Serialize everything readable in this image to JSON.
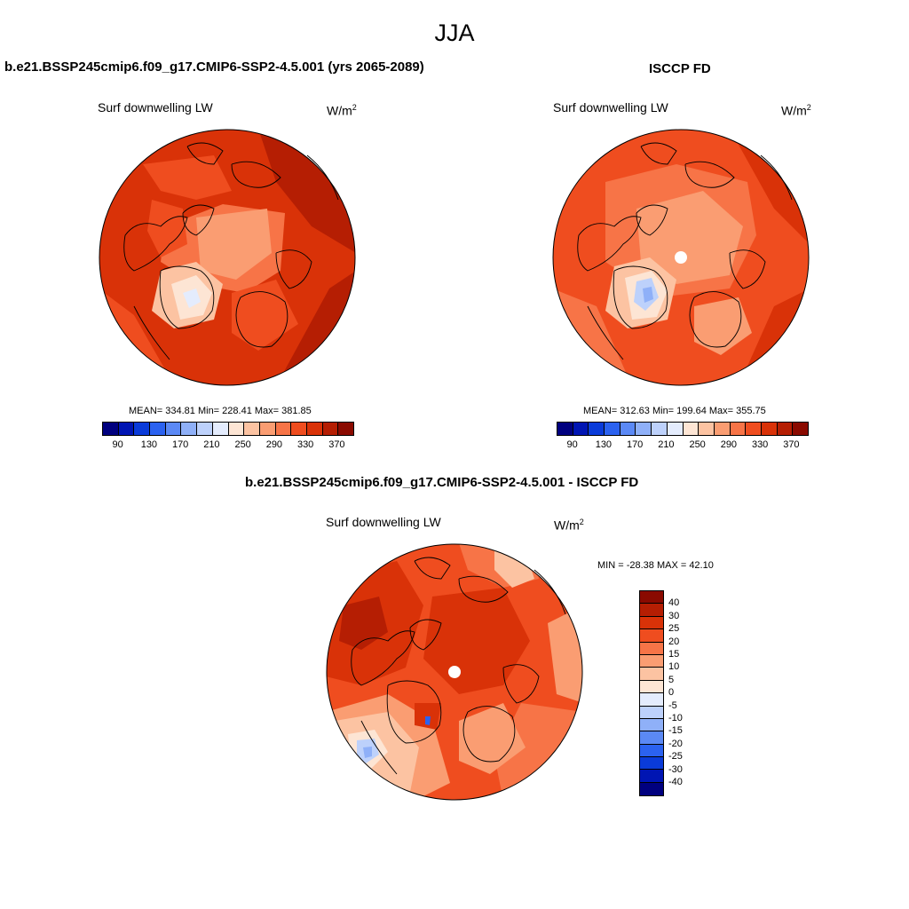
{
  "main_title": "JJA",
  "panels": [
    {
      "title": "b.e21.BSSP245cmip6.f09_g17.CMIP6-SSP2-4.5.001 (yrs 2065-2089)",
      "variable": "Surf downwelling LW",
      "units": "W/m",
      "units_sup": "2",
      "stats": "MEAN= 334.81  Min= 228.41  Max= 381.85",
      "colorbar_ticks": [
        "90",
        "130",
        "170",
        "210",
        "250",
        "290",
        "330",
        "370"
      ]
    },
    {
      "title": "ISCCP FD",
      "variable": "Surf downwelling LW",
      "units": "W/m",
      "units_sup": "2",
      "stats": "MEAN= 312.63  Min= 199.64  Max= 355.75",
      "colorbar_ticks": [
        "90",
        "130",
        "170",
        "210",
        "250",
        "290",
        "330",
        "370"
      ]
    },
    {
      "title": "b.e21.BSSP245cmip6.f09_g17.CMIP6-SSP2-4.5.001 - ISCCP FD",
      "variable": "Surf downwelling LW",
      "units": "W/m",
      "units_sup": "2",
      "stats": "MIN = -28.38 MAX =  42.10",
      "colorbar_ticks": [
        "40",
        "30",
        "25",
        "20",
        "15",
        "10",
        "5",
        "0",
        "-5",
        "-10",
        "-15",
        "-20",
        "-25",
        "-30",
        "-40"
      ]
    }
  ],
  "colors": {
    "field_palette": [
      "#00007f",
      "#0015b3",
      "#0a3bd9",
      "#2b62f0",
      "#5b89f5",
      "#8fb0f8",
      "#bdd1fb",
      "#e4ecfd",
      "#fde5d4",
      "#fcc3a2",
      "#fa9d72",
      "#f77447",
      "#ef4d1f",
      "#d93208",
      "#b51e03",
      "#8a0a00"
    ],
    "diff_palette": [
      "#8a0a00",
      "#b51e03",
      "#d93208",
      "#ef4d1f",
      "#f77447",
      "#fa9d72",
      "#fcc3a2",
      "#fde5d4",
      "#e4ecfd",
      "#bdd1fb",
      "#8fb0f8",
      "#5b89f5",
      "#2b62f0",
      "#0a3bd9",
      "#0015b3",
      "#00007f"
    ]
  }
}
